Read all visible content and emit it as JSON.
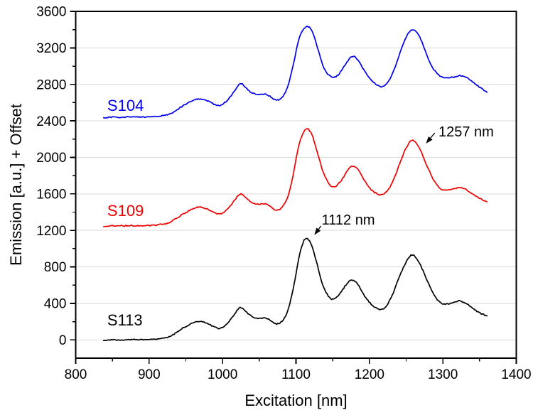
{
  "figure": {
    "background": "#ffffff"
  },
  "chart_data": {
    "type": "line",
    "title": "",
    "xlabel": "Excitation [nm]",
    "ylabel": "Emission [a.u.] + Offset",
    "xlim": [
      800,
      1400
    ],
    "ylim": [
      -200,
      3600
    ],
    "xticks": [
      800,
      900,
      1000,
      1100,
      1200,
      1300,
      1400
    ],
    "yticks": [
      0,
      400,
      800,
      1200,
      1600,
      2000,
      2400,
      2800,
      3200,
      3600
    ],
    "x_minor_ticks": [
      850,
      950,
      1050,
      1150,
      1250,
      1350
    ],
    "y_minor_ticks": [
      200,
      600,
      1000,
      1400,
      1800,
      2200,
      2600,
      3000,
      3400
    ],
    "grid": "horizontal-only",
    "grid_color": "#d9d9d9",
    "axis_color": "#000000",
    "series": [
      {
        "name": "S113",
        "color": "#000000",
        "label_pos": [
          843,
          158
        ],
        "points": [
          [
            838,
            -5
          ],
          [
            850,
            2
          ],
          [
            862,
            -2
          ],
          [
            875,
            4
          ],
          [
            888,
            2
          ],
          [
            900,
            6
          ],
          [
            912,
            10
          ],
          [
            925,
            30
          ],
          [
            935,
            70
          ],
          [
            945,
            125
          ],
          [
            958,
            180
          ],
          [
            968,
            205
          ],
          [
            978,
            185
          ],
          [
            990,
            140
          ],
          [
            997,
            128
          ],
          [
            1005,
            170
          ],
          [
            1015,
            265
          ],
          [
            1024,
            355
          ],
          [
            1032,
            310
          ],
          [
            1040,
            255
          ],
          [
            1048,
            235
          ],
          [
            1057,
            240
          ],
          [
            1064,
            220
          ],
          [
            1072,
            175
          ],
          [
            1080,
            195
          ],
          [
            1088,
            300
          ],
          [
            1096,
            550
          ],
          [
            1104,
            900
          ],
          [
            1112,
            1105
          ],
          [
            1120,
            1060
          ],
          [
            1128,
            850
          ],
          [
            1136,
            610
          ],
          [
            1145,
            470
          ],
          [
            1152,
            450
          ],
          [
            1160,
            510
          ],
          [
            1168,
            600
          ],
          [
            1176,
            655
          ],
          [
            1184,
            610
          ],
          [
            1192,
            500
          ],
          [
            1200,
            410
          ],
          [
            1208,
            355
          ],
          [
            1216,
            330
          ],
          [
            1224,
            380
          ],
          [
            1232,
            510
          ],
          [
            1240,
            680
          ],
          [
            1250,
            850
          ],
          [
            1258,
            930
          ],
          [
            1266,
            870
          ],
          [
            1274,
            740
          ],
          [
            1282,
            590
          ],
          [
            1290,
            470
          ],
          [
            1298,
            400
          ],
          [
            1306,
            395
          ],
          [
            1314,
            410
          ],
          [
            1322,
            425
          ],
          [
            1330,
            405
          ],
          [
            1338,
            360
          ],
          [
            1348,
            305
          ],
          [
            1355,
            280
          ],
          [
            1360,
            265
          ]
        ]
      },
      {
        "name": "S109",
        "color": "#ee0000",
        "label_pos": [
          843,
          1357
        ],
        "points": [
          [
            838,
            1245
          ],
          [
            850,
            1252
          ],
          [
            862,
            1248
          ],
          [
            875,
            1254
          ],
          [
            888,
            1252
          ],
          [
            900,
            1256
          ],
          [
            912,
            1260
          ],
          [
            925,
            1280
          ],
          [
            935,
            1320
          ],
          [
            945,
            1375
          ],
          [
            958,
            1430
          ],
          [
            968,
            1455
          ],
          [
            978,
            1435
          ],
          [
            990,
            1390
          ],
          [
            997,
            1380
          ],
          [
            1005,
            1420
          ],
          [
            1015,
            1515
          ],
          [
            1024,
            1595
          ],
          [
            1032,
            1555
          ],
          [
            1040,
            1505
          ],
          [
            1048,
            1485
          ],
          [
            1057,
            1490
          ],
          [
            1064,
            1470
          ],
          [
            1072,
            1425
          ],
          [
            1080,
            1445
          ],
          [
            1088,
            1550
          ],
          [
            1096,
            1800
          ],
          [
            1104,
            2140
          ],
          [
            1113,
            2305
          ],
          [
            1121,
            2260
          ],
          [
            1129,
            2060
          ],
          [
            1137,
            1840
          ],
          [
            1146,
            1700
          ],
          [
            1153,
            1680
          ],
          [
            1161,
            1740
          ],
          [
            1169,
            1840
          ],
          [
            1177,
            1905
          ],
          [
            1185,
            1860
          ],
          [
            1193,
            1750
          ],
          [
            1201,
            1660
          ],
          [
            1209,
            1610
          ],
          [
            1217,
            1590
          ],
          [
            1225,
            1640
          ],
          [
            1233,
            1760
          ],
          [
            1241,
            1930
          ],
          [
            1250,
            2100
          ],
          [
            1258,
            2190
          ],
          [
            1266,
            2130
          ],
          [
            1274,
            1990
          ],
          [
            1282,
            1840
          ],
          [
            1290,
            1720
          ],
          [
            1298,
            1650
          ],
          [
            1306,
            1645
          ],
          [
            1314,
            1655
          ],
          [
            1322,
            1672
          ],
          [
            1330,
            1655
          ],
          [
            1338,
            1610
          ],
          [
            1348,
            1560
          ],
          [
            1355,
            1530
          ],
          [
            1360,
            1512
          ]
        ]
      },
      {
        "name": "S104",
        "color": "#0000ee",
        "label_pos": [
          843,
          2510
        ],
        "points": [
          [
            838,
            2435
          ],
          [
            850,
            2442
          ],
          [
            862,
            2438
          ],
          [
            875,
            2444
          ],
          [
            888,
            2442
          ],
          [
            900,
            2446
          ],
          [
            912,
            2450
          ],
          [
            925,
            2468
          ],
          [
            935,
            2505
          ],
          [
            945,
            2560
          ],
          [
            958,
            2618
          ],
          [
            968,
            2642
          ],
          [
            978,
            2622
          ],
          [
            990,
            2580
          ],
          [
            997,
            2572
          ],
          [
            1005,
            2615
          ],
          [
            1015,
            2710
          ],
          [
            1024,
            2808
          ],
          [
            1032,
            2762
          ],
          [
            1040,
            2705
          ],
          [
            1048,
            2688
          ],
          [
            1057,
            2692
          ],
          [
            1064,
            2672
          ],
          [
            1072,
            2628
          ],
          [
            1080,
            2650
          ],
          [
            1088,
            2760
          ],
          [
            1096,
            3000
          ],
          [
            1104,
            3300
          ],
          [
            1114,
            3432
          ],
          [
            1122,
            3380
          ],
          [
            1130,
            3180
          ],
          [
            1138,
            2980
          ],
          [
            1146,
            2895
          ],
          [
            1153,
            2880
          ],
          [
            1161,
            2940
          ],
          [
            1169,
            3040
          ],
          [
            1177,
            3108
          ],
          [
            1185,
            3060
          ],
          [
            1193,
            2950
          ],
          [
            1201,
            2860
          ],
          [
            1209,
            2800
          ],
          [
            1217,
            2775
          ],
          [
            1225,
            2820
          ],
          [
            1233,
            2950
          ],
          [
            1241,
            3130
          ],
          [
            1250,
            3320
          ],
          [
            1259,
            3402
          ],
          [
            1267,
            3340
          ],
          [
            1275,
            3190
          ],
          [
            1283,
            3030
          ],
          [
            1291,
            2930
          ],
          [
            1299,
            2880
          ],
          [
            1307,
            2870
          ],
          [
            1315,
            2880
          ],
          [
            1323,
            2895
          ],
          [
            1331,
            2880
          ],
          [
            1339,
            2835
          ],
          [
            1348,
            2780
          ],
          [
            1355,
            2740
          ],
          [
            1360,
            2712
          ]
        ]
      }
    ],
    "annotations": [
      {
        "text": "1112 nm",
        "label_pos": [
          1135,
          1264
        ],
        "arrow_tail": [
          1134,
          1248
        ],
        "arrow_tip": [
          1125,
          1150
        ]
      },
      {
        "text": "1257 nm",
        "label_pos": [
          1294,
          2230
        ],
        "arrow_tail": [
          1289,
          2268
        ],
        "arrow_tip": [
          1277,
          2152
        ]
      }
    ]
  }
}
